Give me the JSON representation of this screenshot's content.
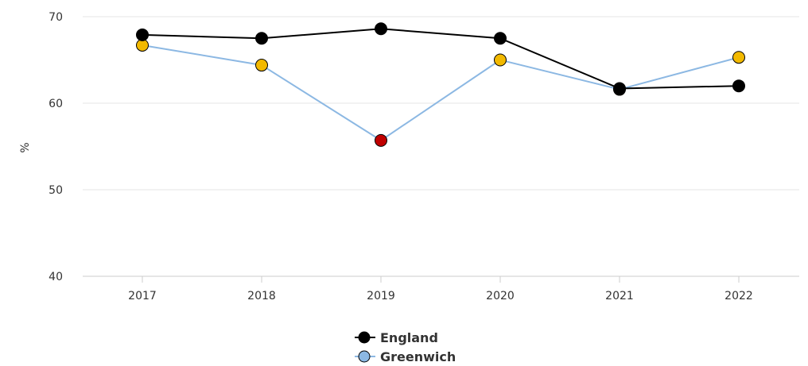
{
  "chart_data": {
    "type": "line",
    "ylabel": "%",
    "ylim": [
      40,
      70
    ],
    "y_ticks": [
      40,
      50,
      60,
      70
    ],
    "categories": [
      "2017",
      "2018",
      "2019",
      "2020",
      "2021",
      "2022"
    ],
    "grid": true,
    "legend_position": "bottom-center",
    "series": [
      {
        "name": "England",
        "values": [
          67.9,
          67.5,
          68.6,
          67.5,
          61.7,
          62.0
        ],
        "line_color": "#000000",
        "marker_color": "#000000"
      },
      {
        "name": "Greenwich",
        "values": [
          66.7,
          64.4,
          55.7,
          65.0,
          61.6,
          65.3
        ],
        "line_color": "#8cb8e3",
        "marker_colors": [
          "#f2b900",
          "#f2b900",
          "#c00000",
          "#f2b900",
          "#f2b900",
          "#f2b900"
        ],
        "legend_marker_color": "#8cb8e3"
      }
    ]
  }
}
